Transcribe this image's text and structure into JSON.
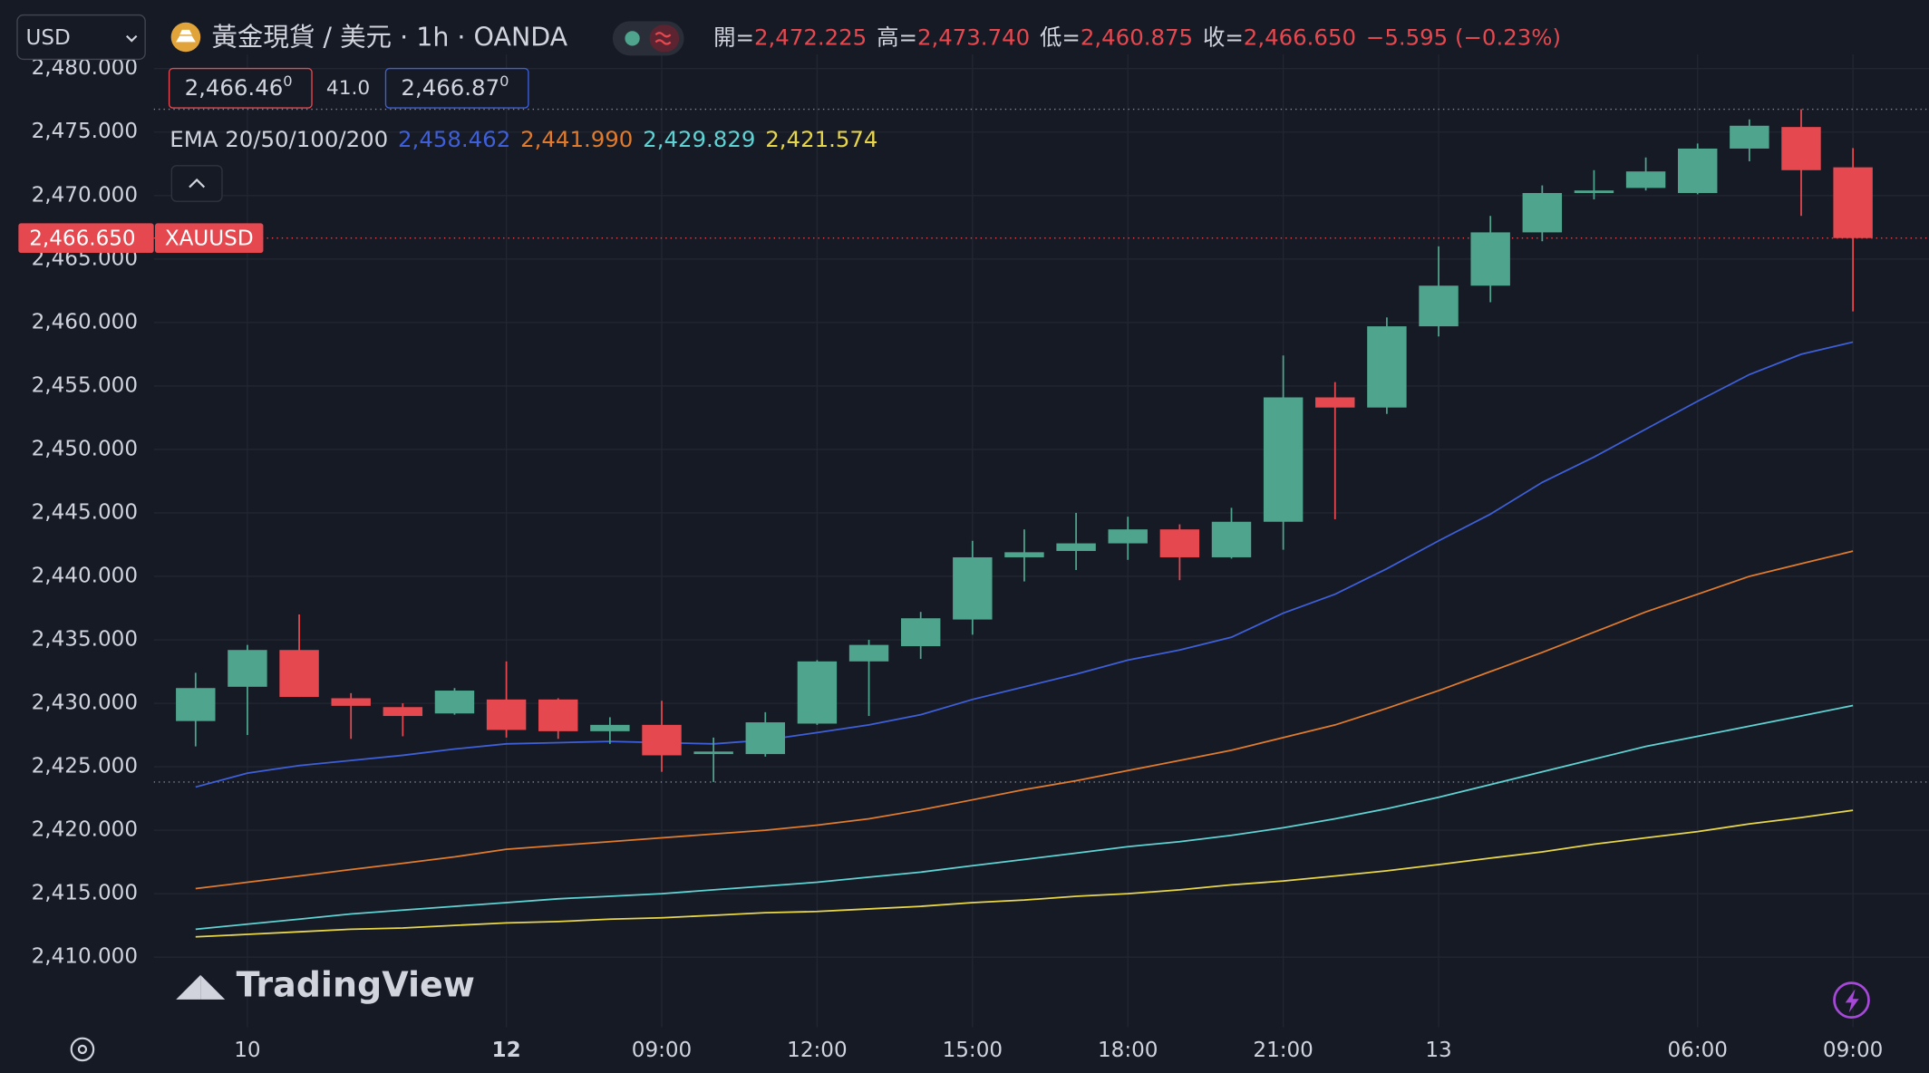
{
  "header": {
    "symbol_select": "USD",
    "title": "黃金現貨 / 美元 · 1h · OANDA",
    "open_label": "開=",
    "open": "2,472.225",
    "high_label": "高=",
    "high": "2,473.740",
    "low_label": "低=",
    "low": "2,460.875",
    "close_label": "收=",
    "close": "2,466.650",
    "change": "−5.595 (−0.23%)",
    "bid": "2,466.46",
    "bid_sup": "0",
    "spread": "41.0",
    "ask": "2,466.87",
    "ask_sup": "0",
    "ema_label": "EMA 20/50/100/200",
    "price_tag": "2,466.650",
    "symbol_tag": "XAUUSD",
    "brand": "TradingView"
  },
  "chart_data": {
    "type": "candlestick",
    "categories": [
      null,
      "10",
      null,
      null,
      null,
      null,
      "12",
      null,
      null,
      "09:00",
      null,
      null,
      "12:00",
      null,
      null,
      "15:00",
      null,
      null,
      "18:00",
      null,
      null,
      "21:00",
      null,
      null,
      "13",
      null,
      null,
      null,
      null,
      "06:00",
      null,
      null,
      "09:00"
    ],
    "open": [
      2428.6,
      2431.3,
      2434.2,
      2430.4,
      2429.7,
      2429.2,
      2430.3,
      2430.3,
      2427.8,
      2428.3,
      2426.0,
      2426.0,
      2428.4,
      2433.3,
      2434.5,
      2436.6,
      2441.5,
      2442.0,
      2442.6,
      2443.7,
      2441.5,
      2444.3,
      2454.1,
      2453.3,
      2459.7,
      2462.9,
      2467.1,
      2470.2,
      2470.6,
      2470.2,
      2473.7,
      2475.4,
      2472.225
    ],
    "high": [
      2432.4,
      2434.6,
      2437.0,
      2430.8,
      2430.0,
      2431.2,
      2433.3,
      2430.4,
      2428.9,
      2430.2,
      2427.3,
      2429.3,
      2433.4,
      2435.0,
      2437.2,
      2442.8,
      2443.7,
      2445.0,
      2444.7,
      2444.1,
      2445.4,
      2457.4,
      2455.3,
      2460.4,
      2466.0,
      2468.4,
      2470.8,
      2472.0,
      2473.0,
      2474.1,
      2476.0,
      2476.8,
      2473.74
    ],
    "low": [
      2426.6,
      2427.5,
      2430.5,
      2427.2,
      2427.4,
      2429.1,
      2427.3,
      2427.2,
      2426.8,
      2424.6,
      2423.8,
      2425.8,
      2428.3,
      2429.0,
      2433.5,
      2435.4,
      2439.6,
      2440.5,
      2441.3,
      2439.7,
      2441.4,
      2442.1,
      2444.5,
      2452.8,
      2458.9,
      2461.6,
      2466.4,
      2469.7,
      2470.4,
      2470.1,
      2472.7,
      2468.4,
      2460.875
    ],
    "close": [
      2431.2,
      2434.2,
      2430.5,
      2429.8,
      2429.0,
      2431.0,
      2427.9,
      2427.8,
      2428.3,
      2425.9,
      2426.2,
      2428.5,
      2433.3,
      2434.6,
      2436.7,
      2441.5,
      2441.9,
      2442.6,
      2443.7,
      2441.5,
      2444.3,
      2454.1,
      2453.3,
      2459.7,
      2462.9,
      2467.1,
      2470.2,
      2470.4,
      2471.9,
      2473.7,
      2475.5,
      2472.0,
      2466.65
    ],
    "up_color": "#4ea48c",
    "down_color": "#e5484f",
    "series": [
      {
        "color": "#3e5fd8",
        "last_label": "2,458.462",
        "values": [
          2423.4,
          2424.5,
          2425.1,
          2425.5,
          2425.9,
          2426.4,
          2426.8,
          2426.9,
          2427.0,
          2426.9,
          2426.8,
          2427.1,
          2427.7,
          2428.3,
          2429.1,
          2430.3,
          2431.3,
          2432.3,
          2433.4,
          2434.2,
          2435.2,
          2437.1,
          2438.6,
          2440.6,
          2442.8,
          2444.9,
          2447.4,
          2449.4,
          2451.6,
          2453.8,
          2455.9,
          2457.5,
          2458.462
        ]
      },
      {
        "color": "#e07b2d",
        "last_label": "2,441.990",
        "values": [
          2415.4,
          2415.9,
          2416.4,
          2416.9,
          2417.4,
          2417.9,
          2418.5,
          2418.8,
          2419.1,
          2419.4,
          2419.7,
          2420.0,
          2420.4,
          2420.9,
          2421.6,
          2422.4,
          2423.2,
          2423.9,
          2424.7,
          2425.5,
          2426.3,
          2427.3,
          2428.3,
          2429.6,
          2431.0,
          2432.5,
          2434.0,
          2435.6,
          2437.2,
          2438.6,
          2440.0,
          2441.0,
          2441.99
        ]
      },
      {
        "color": "#5fd3d3",
        "last_label": "2,429.829",
        "values": [
          2412.2,
          2412.6,
          2413.0,
          2413.4,
          2413.7,
          2414.0,
          2414.3,
          2414.6,
          2414.8,
          2415.0,
          2415.3,
          2415.6,
          2415.9,
          2416.3,
          2416.7,
          2417.2,
          2417.7,
          2418.2,
          2418.7,
          2419.1,
          2419.6,
          2420.2,
          2420.9,
          2421.7,
          2422.6,
          2423.6,
          2424.6,
          2425.6,
          2426.6,
          2427.4,
          2428.2,
          2429.0,
          2429.829
        ]
      },
      {
        "color": "#e8d64a",
        "last_label": "2,421.574",
        "values": [
          2411.6,
          2411.8,
          2412.0,
          2412.2,
          2412.3,
          2412.5,
          2412.7,
          2412.8,
          2413.0,
          2413.1,
          2413.3,
          2413.5,
          2413.6,
          2413.8,
          2414.0,
          2414.3,
          2414.5,
          2414.8,
          2415.0,
          2415.3,
          2415.7,
          2416.0,
          2416.4,
          2416.8,
          2417.3,
          2417.8,
          2418.3,
          2418.9,
          2419.4,
          2419.9,
          2420.5,
          2421.0,
          2421.574
        ]
      }
    ],
    "ylim": [
      2404.48,
      2481.51
    ],
    "yticks": [
      {
        "value": 2410,
        "label": "2,410.000"
      },
      {
        "value": 2415,
        "label": "2,415.000"
      },
      {
        "value": 2420,
        "label": "2,420.000"
      },
      {
        "value": 2425,
        "label": "2,425.000"
      },
      {
        "value": 2430,
        "label": "2,430.000"
      },
      {
        "value": 2435,
        "label": "2,435.000"
      },
      {
        "value": 2440,
        "label": "2,440.000"
      },
      {
        "value": 2445,
        "label": "2,445.000"
      },
      {
        "value": 2450,
        "label": "2,450.000"
      },
      {
        "value": 2455,
        "label": "2,455.000"
      },
      {
        "value": 2460,
        "label": "2,460.000"
      },
      {
        "value": 2465,
        "label": "2,465.000"
      },
      {
        "value": 2470,
        "label": "2,470.000"
      },
      {
        "value": 2475,
        "label": "2,475.000"
      },
      {
        "value": 2480,
        "label": "2,480.000"
      }
    ],
    "reference_lines": [
      2476.8,
      2423.8
    ],
    "last_price": 2466.65,
    "grid": true
  }
}
